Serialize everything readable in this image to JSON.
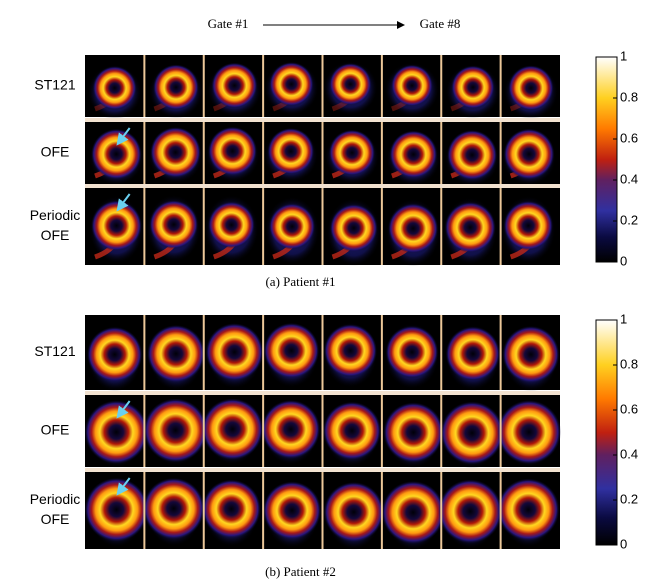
{
  "header": {
    "start": "Gate #1",
    "end": "Gate #8"
  },
  "panels": [
    {
      "caption": "(a) Patient #1",
      "rows": [
        [
          "ST121"
        ],
        [
          "OFE"
        ],
        [
          "Periodic",
          "OFE"
        ]
      ],
      "colorbar_ticks": [
        0,
        0.2,
        0.4,
        0.6,
        0.8,
        1
      ]
    },
    {
      "caption": "(b) Patient #2",
      "rows": [
        [
          "ST121"
        ],
        [
          "OFE"
        ],
        [
          "Periodic",
          "OFE"
        ]
      ],
      "colorbar_ticks": [
        0,
        0.2,
        0.4,
        0.6,
        0.8,
        1
      ]
    }
  ]
}
